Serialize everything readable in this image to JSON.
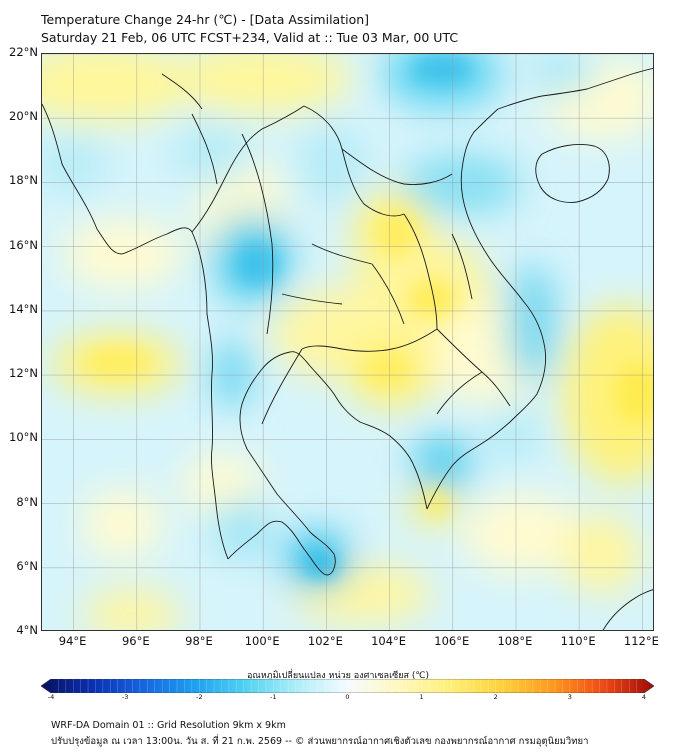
{
  "title": {
    "line1": "Temperature Change 24-hr (℃) - [Data Assimilation]",
    "line2": "Saturday 21 Feb, 06 UTC FCST+234, Valid at :: Tue 03 Mar, 00 UTC"
  },
  "map": {
    "lat_labels": [
      "22°N",
      "20°N",
      "18°N",
      "16°N",
      "14°N",
      "12°N",
      "10°N",
      "8°N",
      "6°N",
      "4°N"
    ],
    "lon_labels": [
      "94°E",
      "96°E",
      "98°E",
      "100°E",
      "102°E",
      "104°E",
      "106°E",
      "108°E",
      "110°E",
      "112°E"
    ],
    "grid": true,
    "lat_range": [
      4,
      22
    ],
    "lon_range": [
      93,
      112.4
    ]
  },
  "colorbar": {
    "title": "อุณหภูมิเปลี่ยนแปลง หน่วย องศาเซลเซียส (℃)",
    "ticks": [
      "-4",
      "-3",
      "-2",
      "-1",
      "0",
      "1",
      "2",
      "3",
      "4"
    ],
    "min": -4,
    "max": 4,
    "colors": [
      "#08105e",
      "#0a2fb0",
      "#1565e0",
      "#1ea0f0",
      "#52d1f2",
      "#aeeef8",
      "#f5fbff",
      "#fff8c0",
      "#fff07a",
      "#ffd23c",
      "#ff9a1e",
      "#f04a14",
      "#9e0a0a"
    ]
  },
  "footer": {
    "line1": "WRF-DA Domain 01 :: Grid Resolution 9km x 9km",
    "line2": "ปรับปรุงข้อมูล ณ เวลา 13:00น. วัน ส. ที่ 21 ก.พ. 2569 -- © ส่วนพยากรณ์อากาศเชิงตัวเลข กองพยากรณ์อากาศ กรมอุตุนิยมวิทยา"
  }
}
